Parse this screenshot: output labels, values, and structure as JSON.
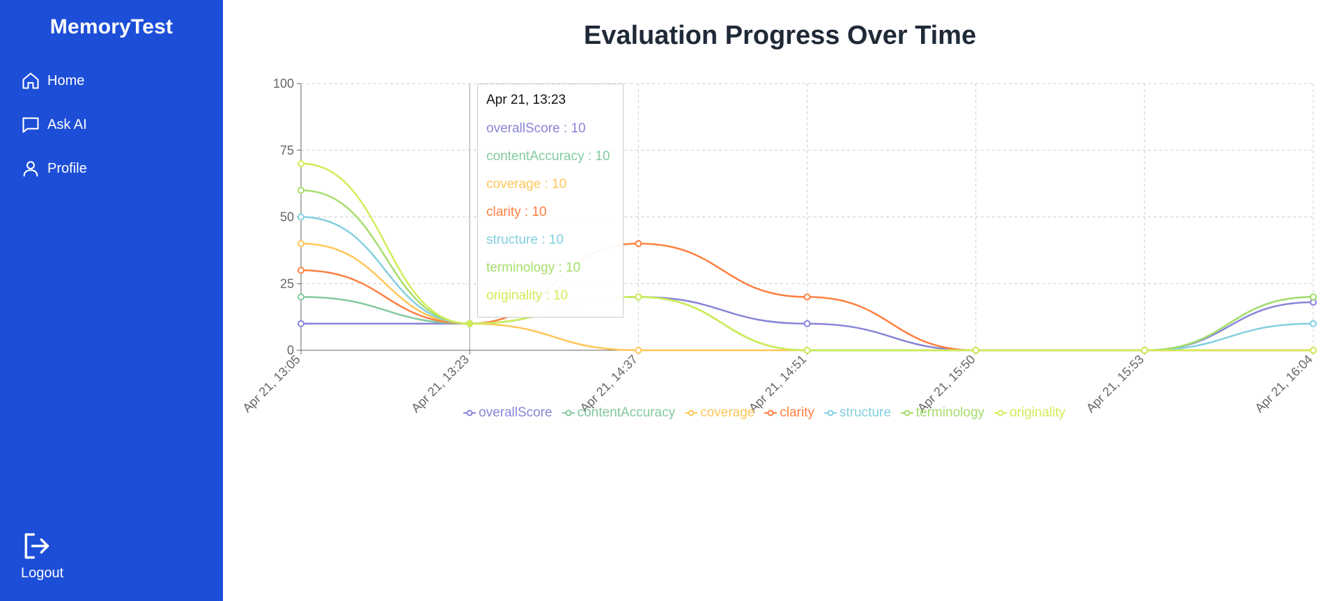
{
  "sidebar": {
    "brand": "MemoryTest",
    "items": [
      {
        "label": "Home",
        "icon": "home-icon"
      },
      {
        "label": "Ask AI",
        "icon": "chat-icon"
      },
      {
        "label": "Profile",
        "icon": "user-icon"
      }
    ],
    "logout_label": "Logout",
    "bg_color": "#1d4ed8"
  },
  "main": {
    "title": "Evaluation Progress Over Time"
  },
  "tooltip": {
    "title": "Apr 21, 13:23",
    "rows": [
      "overallScore : 10",
      "contentAccuracy : 10",
      "coverage : 10",
      "clarity : 10",
      "structure : 10",
      "terminology : 10",
      "originality : 10"
    ]
  },
  "chart_data": {
    "type": "line",
    "title": "Evaluation Progress Over Time",
    "x": [
      "Apr 21, 13:05",
      "Apr 21, 13:23",
      "Apr 21, 14:37",
      "Apr 21, 14:51",
      "Apr 21, 15:50",
      "Apr 21, 15:53",
      "Apr 21, 16:04"
    ],
    "ylim": [
      0,
      100
    ],
    "yticks": [
      0,
      25,
      50,
      75,
      100
    ],
    "grid": true,
    "legend": "bottom",
    "series": [
      {
        "name": "overallScore",
        "color": "#8884d8",
        "values": [
          10,
          10,
          20,
          10,
          0,
          0,
          18
        ]
      },
      {
        "name": "contentAccuracy",
        "color": "#82ca9d",
        "values": [
          20,
          10,
          20,
          0,
          0,
          0,
          20
        ]
      },
      {
        "name": "coverage",
        "color": "#ffc658",
        "values": [
          40,
          10,
          0,
          0,
          0,
          0,
          0
        ]
      },
      {
        "name": "clarity",
        "color": "#ff7f3f",
        "values": [
          30,
          10,
          40,
          20,
          0,
          0,
          0
        ]
      },
      {
        "name": "structure",
        "color": "#82cfe0",
        "values": [
          50,
          10,
          20,
          0,
          0,
          0,
          10
        ]
      },
      {
        "name": "terminology",
        "color": "#a4de6c",
        "values": [
          60,
          10,
          20,
          0,
          0,
          0,
          20
        ]
      },
      {
        "name": "originality",
        "color": "#d0ed57",
        "values": [
          70,
          10,
          20,
          0,
          0,
          0,
          0
        ]
      }
    ]
  }
}
